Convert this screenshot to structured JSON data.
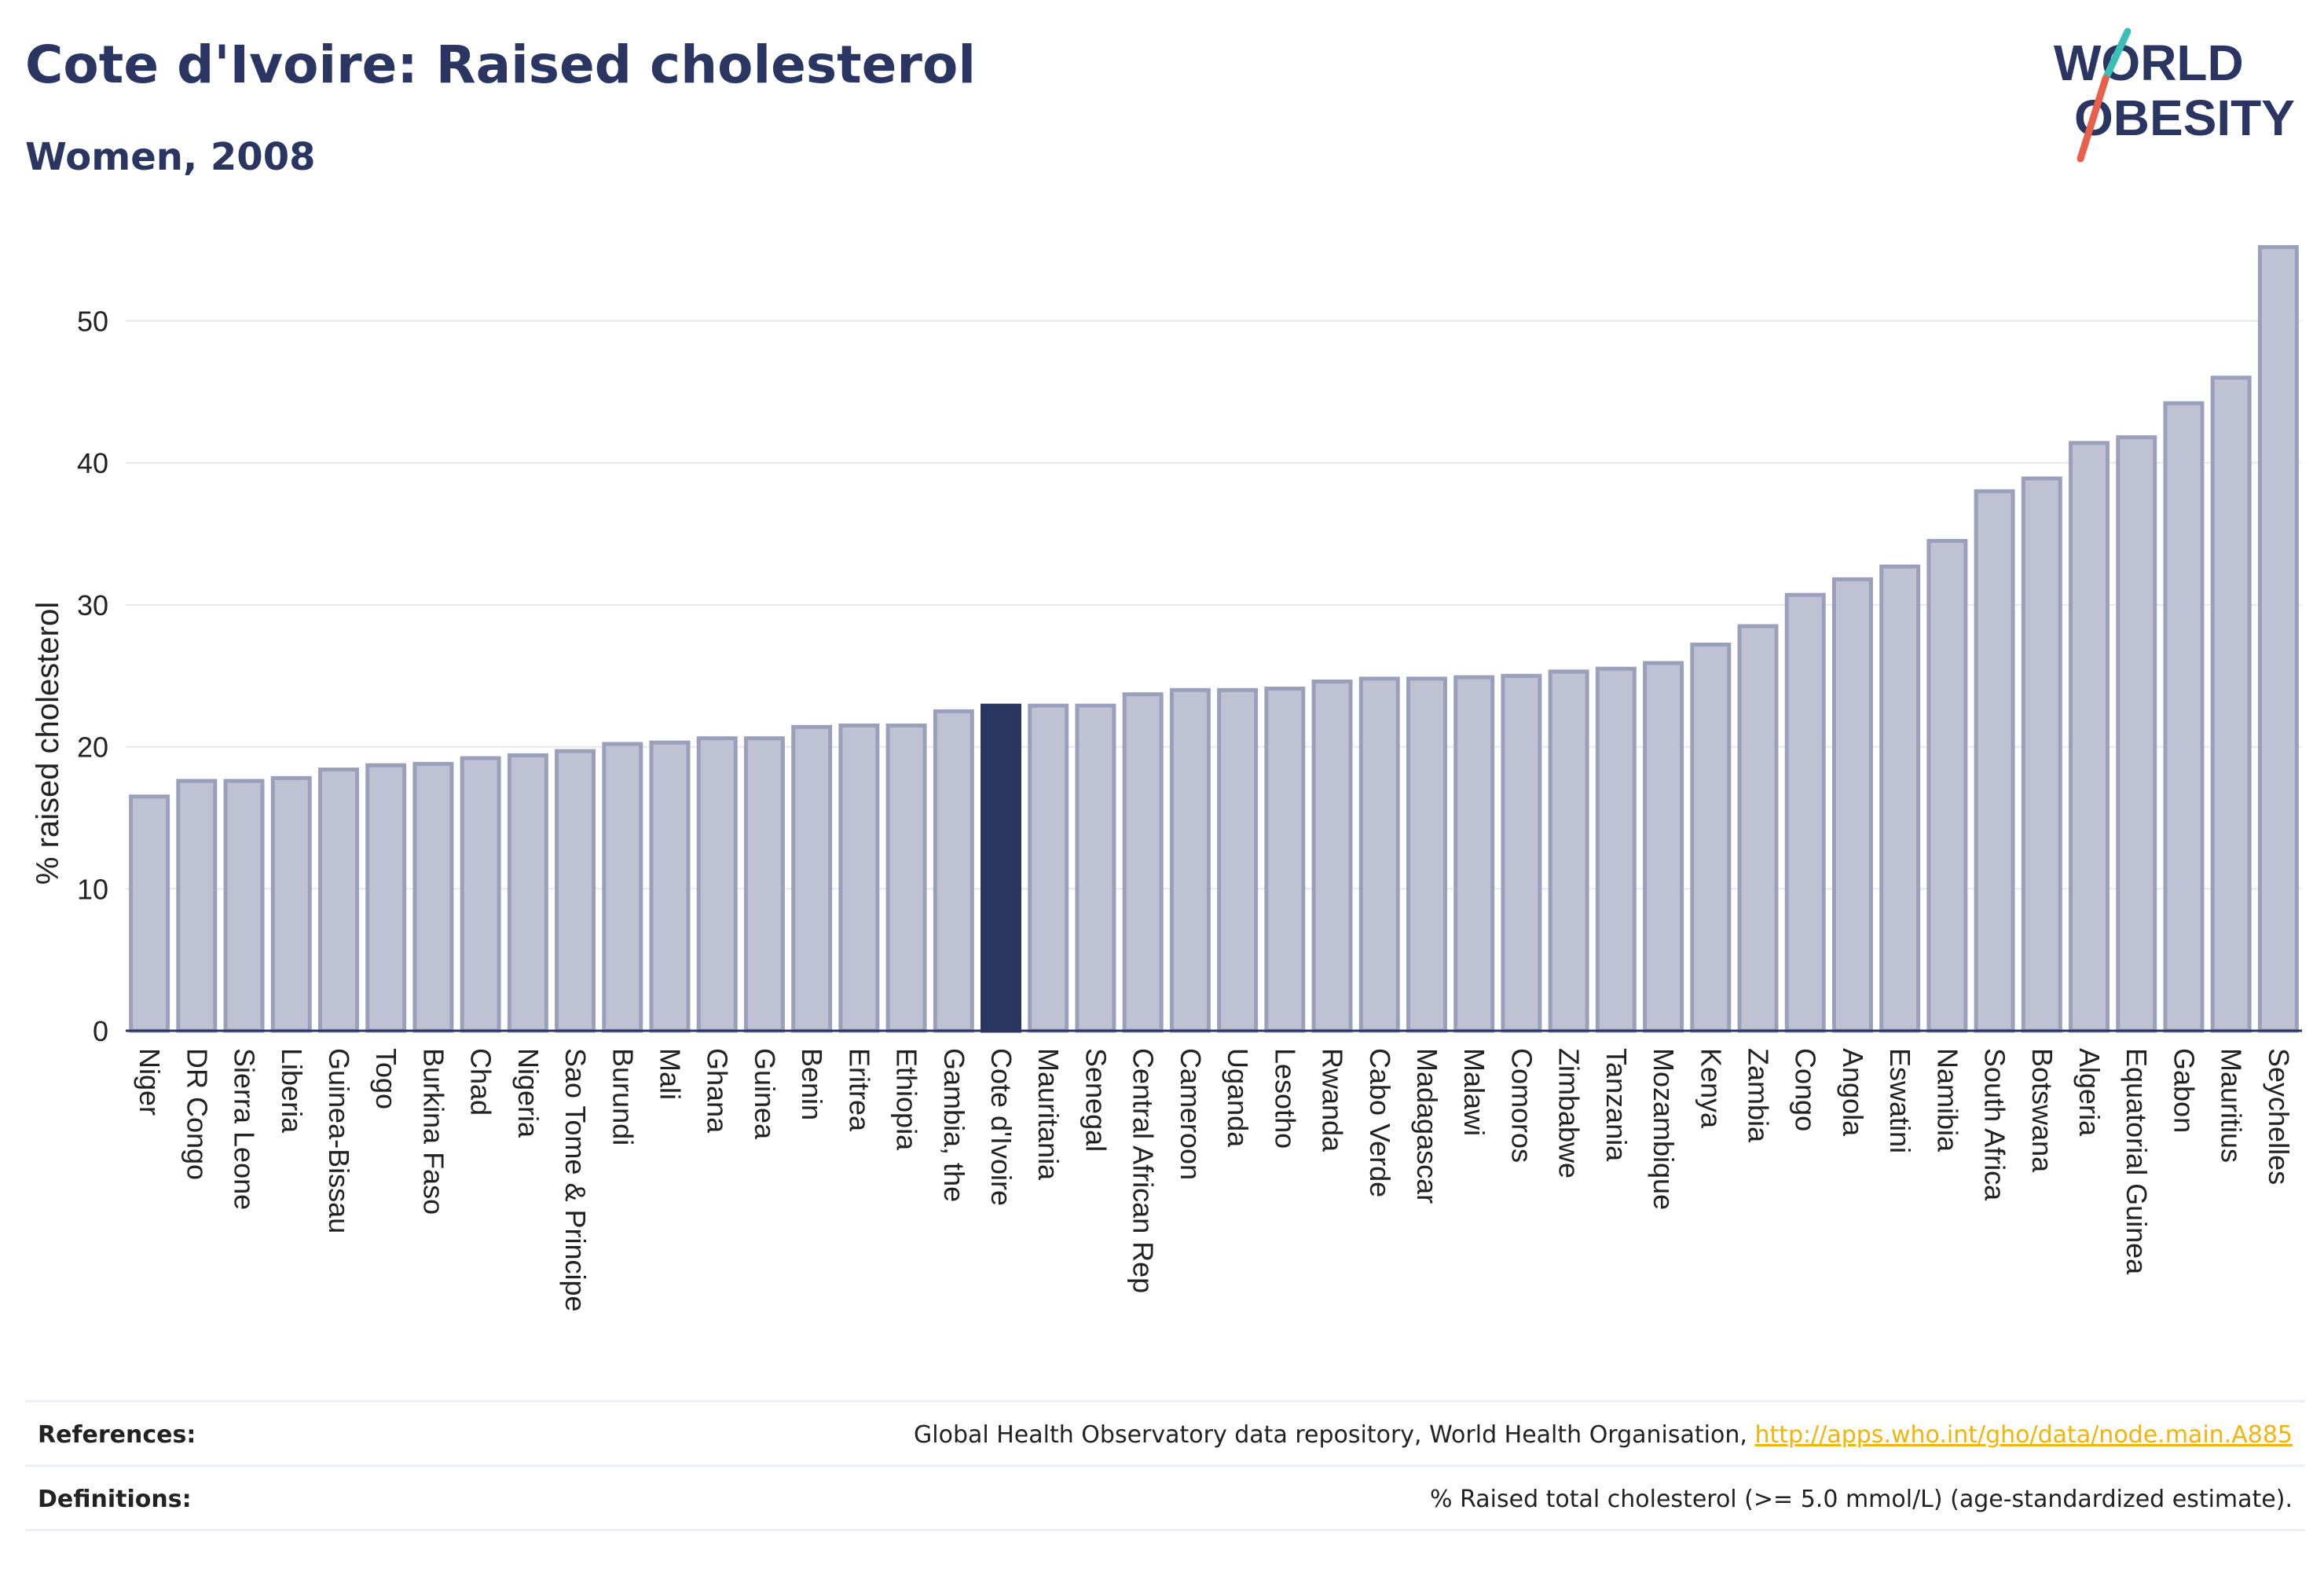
{
  "header": {
    "title": "Cote d'Ivoire: Raised cholesterol",
    "subtitle": "Women, 2008"
  },
  "logo": {
    "line1": "WORLD",
    "line2": "OBESITY",
    "colors": {
      "text": "#2b3561",
      "slash_teal": "#3bbfb5",
      "slash_red": "#e8604c"
    }
  },
  "chart_data": {
    "type": "bar",
    "title": "",
    "xlabel": "",
    "ylabel": "% raised cholesterol",
    "ylim": [
      0,
      56
    ],
    "yticks": [
      0,
      10,
      20,
      30,
      40,
      50
    ],
    "grid": true,
    "highlight": "Cote d'Ivoire",
    "colors": {
      "bar": "#bfc2d2",
      "bar_edge": "#9aa0bb",
      "highlight": "#2b3561",
      "grid": "#e6e8f0",
      "axis": "#2b3561"
    },
    "categories": [
      "Niger",
      "DR Congo",
      "Sierra Leone",
      "Liberia",
      "Guinea-Bissau",
      "Togo",
      "Burkina Faso",
      "Chad",
      "Nigeria",
      "Sao Tome & Principe",
      "Burundi",
      "Mali",
      "Ghana",
      "Guinea",
      "Benin",
      "Eritrea",
      "Ethiopia",
      "Gambia, the",
      "Cote d'Ivoire",
      "Mauritania",
      "Senegal",
      "Central African Rep",
      "Cameroon",
      "Uganda",
      "Lesotho",
      "Rwanda",
      "Cabo Verde",
      "Madagascar",
      "Malawi",
      "Comoros",
      "Zimbabwe",
      "Tanzania",
      "Mozambique",
      "Kenya",
      "Zambia",
      "Congo",
      "Angola",
      "Eswatini",
      "Namibia",
      "South Africa",
      "Botswana",
      "Algeria",
      "Equatorial Guinea",
      "Gabon",
      "Mauritius",
      "Seychelles"
    ],
    "values": [
      16.5,
      17.6,
      17.6,
      17.8,
      18.4,
      18.7,
      18.8,
      19.2,
      19.4,
      19.7,
      20.2,
      20.3,
      20.6,
      20.6,
      21.4,
      21.5,
      21.5,
      22.5,
      22.9,
      22.9,
      22.9,
      23.7,
      24.0,
      24.0,
      24.1,
      24.6,
      24.8,
      24.8,
      24.9,
      25.0,
      25.3,
      25.5,
      25.9,
      27.2,
      28.5,
      30.7,
      31.8,
      32.7,
      34.5,
      38.0,
      38.9,
      41.4,
      41.8,
      44.2,
      46.0,
      55.2
    ]
  },
  "footer": {
    "references_label": "References:",
    "references_text": "Global Health Observatory data repository, World Health Organisation, ",
    "references_link": "http://apps.who.int/gho/data/node.main.A885",
    "definitions_label": "Definitions:",
    "definitions_text": "% Raised total cholesterol (>= 5.0 mmol/L) (age-standardized estimate)."
  }
}
